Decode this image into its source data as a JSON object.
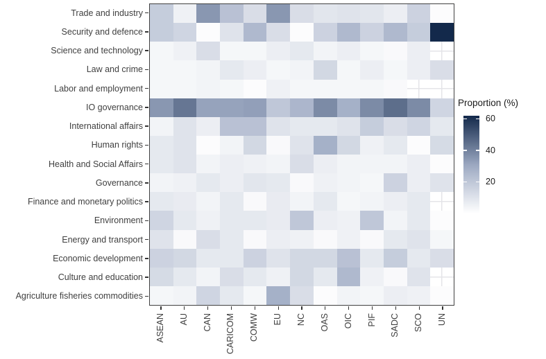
{
  "chart_data": {
    "type": "heatmap",
    "title": "",
    "legend": {
      "title": "Proportion (%)",
      "ticks": [
        60,
        40,
        20
      ],
      "domain": [
        0,
        62
      ],
      "position": "right"
    },
    "color_scale": {
      "stops": [
        [
          0,
          "#FFFFFF"
        ],
        [
          30,
          "#9FABC4"
        ],
        [
          62,
          "#13294B"
        ]
      ],
      "na_style": "blank-with-gridlines"
    },
    "columns": [
      "ASEAN",
      "AU",
      "CAN",
      "CARICOM",
      "COMW",
      "EU",
      "NC",
      "OAS",
      "OIC",
      "PIF",
      "SADC",
      "SCO",
      "UN"
    ],
    "rows": [
      "Trade and industry",
      "Security and defence",
      "Science and technology",
      "Law and crime",
      "Labor and employment",
      "IO governance",
      "International affairs",
      "Human rights",
      "Health and Social Affairs",
      "Governance",
      "Finance and monetary politics",
      "Environment",
      "Energy and transport",
      "Economic development",
      "Culture and education",
      "Agriculture fisheries commodities"
    ],
    "values": [
      [
        18,
        5,
        35,
        22,
        12,
        35,
        12,
        9,
        10,
        9,
        6,
        16,
        1
      ],
      [
        18,
        15,
        1,
        10,
        25,
        12,
        1,
        16,
        25,
        16,
        25,
        18,
        62
      ],
      [
        3,
        5,
        12,
        3,
        3,
        6,
        8,
        4,
        6,
        3,
        2,
        6,
        null
      ],
      [
        3,
        3,
        4,
        8,
        6,
        3,
        4,
        14,
        3,
        6,
        3,
        6,
        12
      ],
      [
        3,
        3,
        4,
        3,
        1,
        5,
        3,
        3,
        3,
        3,
        2,
        null,
        null
      ],
      [
        35,
        43,
        32,
        32,
        33,
        20,
        26,
        38,
        28,
        38,
        45,
        38,
        15
      ],
      [
        4,
        10,
        6,
        22,
        22,
        10,
        8,
        8,
        10,
        18,
        12,
        15,
        8
      ],
      [
        8,
        10,
        1,
        4,
        14,
        2,
        10,
        28,
        14,
        5,
        8,
        1,
        13
      ],
      [
        8,
        10,
        4,
        6,
        5,
        4,
        12,
        6,
        4,
        4,
        4,
        6,
        1
      ],
      [
        4,
        5,
        8,
        6,
        9,
        8,
        2,
        5,
        4,
        3,
        16,
        6,
        10
      ],
      [
        8,
        7,
        4,
        8,
        2,
        7,
        4,
        8,
        3,
        4,
        6,
        8,
        null
      ],
      [
        15,
        8,
        5,
        8,
        8,
        7,
        20,
        6,
        5,
        20,
        4,
        8,
        1
      ],
      [
        10,
        2,
        12,
        8,
        2,
        6,
        5,
        2,
        5,
        2,
        8,
        10,
        3
      ],
      [
        16,
        14,
        8,
        8,
        16,
        10,
        14,
        14,
        22,
        8,
        18,
        8,
        12
      ],
      [
        13,
        8,
        4,
        12,
        8,
        5,
        14,
        8,
        25,
        5,
        2,
        10,
        null
      ],
      [
        3,
        4,
        15,
        8,
        3,
        28,
        12,
        1,
        4,
        3,
        6,
        5,
        1
      ]
    ]
  },
  "colors": {
    "panel_border": "#404040",
    "axis_tick": "#333333",
    "axis_text": "#3F3F3F",
    "legend_text": "#1A1A1A",
    "na_grid_line": "#E4E4E8",
    "background": "#FFFFFF"
  }
}
